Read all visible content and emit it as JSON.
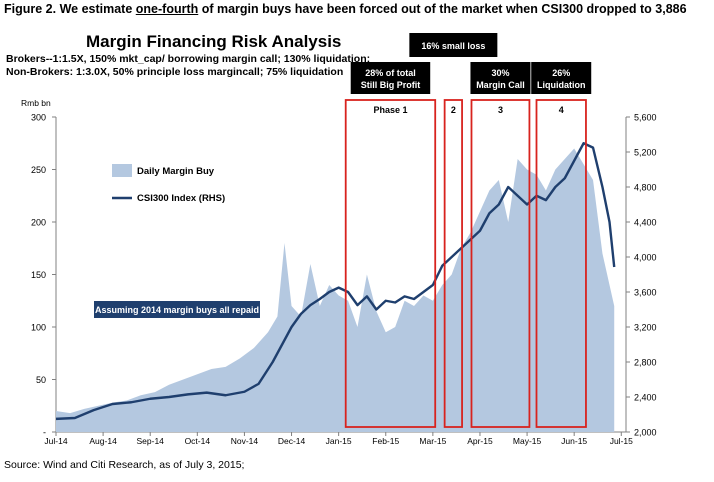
{
  "figure": {
    "prefix": "Figure 2. We estimate ",
    "emphasis": "one-fourth",
    "suffix": " of margin buys have been forced out of the market when CSI300 dropped to 3,886"
  },
  "source": "Source: Wind and Citi Research, as of July 3, 2015;",
  "colors": {
    "area": "#b4c8e0",
    "line": "#1f3f6e",
    "phase_box": "#d8231e",
    "header_fill": "#000000",
    "callout_fill": "#1f3f6e"
  },
  "chart_data": {
    "type": "area+line",
    "title": "Margin Financing Risk Analysis",
    "subtitle_lines": [
      "Brokers--1:1.5X, 150% mkt_cap/ borrowing margin call; 130% liquidation;",
      "Non-Brokers: 1:3.0X, 50% principle loss margincall; 75% liquidation"
    ],
    "ylabel_left": "Rmb bn",
    "ylim_left": [
      0,
      300
    ],
    "yticks_left": [
      "-",
      "50",
      "100",
      "150",
      "200",
      "250",
      "300"
    ],
    "ylim_right": [
      2000,
      5600
    ],
    "yticks_right": [
      "2,000",
      "2,400",
      "2,800",
      "3,200",
      "3,600",
      "4,000",
      "4,400",
      "4,800",
      "5,200",
      "5,600"
    ],
    "xlim": [
      0,
      12.1
    ],
    "xticks": [
      "Jul-14",
      "Aug-14",
      "Sep-14",
      "Oct-14",
      "Nov-14",
      "Dec-14",
      "Jan-15",
      "Feb-15",
      "Mar-15",
      "Apr-15",
      "May-15",
      "Jun-15",
      "Jul-15"
    ],
    "series": [
      {
        "name": "Daily Margin Buy",
        "kind": "area",
        "axis": "left",
        "points": [
          [
            0,
            20
          ],
          [
            0.3,
            18
          ],
          [
            0.6,
            22
          ],
          [
            0.9,
            25
          ],
          [
            1.2,
            28
          ],
          [
            1.5,
            30
          ],
          [
            1.8,
            35
          ],
          [
            2.1,
            38
          ],
          [
            2.4,
            45
          ],
          [
            2.7,
            50
          ],
          [
            3,
            55
          ],
          [
            3.3,
            60
          ],
          [
            3.6,
            62
          ],
          [
            3.9,
            70
          ],
          [
            4.2,
            80
          ],
          [
            4.5,
            95
          ],
          [
            4.7,
            110
          ],
          [
            4.85,
            180
          ],
          [
            5,
            120
          ],
          [
            5.2,
            110
          ],
          [
            5.4,
            160
          ],
          [
            5.6,
            120
          ],
          [
            5.8,
            140
          ],
          [
            6,
            130
          ],
          [
            6.2,
            125
          ],
          [
            6.4,
            100
          ],
          [
            6.6,
            150
          ],
          [
            6.8,
            115
          ],
          [
            7,
            95
          ],
          [
            7.2,
            100
          ],
          [
            7.4,
            125
          ],
          [
            7.6,
            120
          ],
          [
            7.8,
            130
          ],
          [
            8,
            125
          ],
          [
            8.2,
            140
          ],
          [
            8.4,
            150
          ],
          [
            8.6,
            175
          ],
          [
            8.8,
            190
          ],
          [
            9,
            210
          ],
          [
            9.2,
            230
          ],
          [
            9.4,
            240
          ],
          [
            9.6,
            200
          ],
          [
            9.8,
            260
          ],
          [
            10,
            250
          ],
          [
            10.2,
            245
          ],
          [
            10.4,
            230
          ],
          [
            10.6,
            250
          ],
          [
            10.8,
            260
          ],
          [
            11,
            270
          ],
          [
            11.2,
            255
          ],
          [
            11.4,
            240
          ],
          [
            11.6,
            170
          ],
          [
            11.75,
            140
          ],
          [
            11.85,
            120
          ]
        ]
      },
      {
        "name": "CSI300 Index (RHS)",
        "kind": "line",
        "axis": "right",
        "points": [
          [
            0,
            2150
          ],
          [
            0.4,
            2160
          ],
          [
            0.8,
            2250
          ],
          [
            1.2,
            2320
          ],
          [
            1.6,
            2340
          ],
          [
            2,
            2380
          ],
          [
            2.4,
            2400
          ],
          [
            2.8,
            2430
          ],
          [
            3.2,
            2450
          ],
          [
            3.6,
            2420
          ],
          [
            4,
            2460
          ],
          [
            4.3,
            2550
          ],
          [
            4.6,
            2800
          ],
          [
            4.8,
            3000
          ],
          [
            5,
            3200
          ],
          [
            5.2,
            3350
          ],
          [
            5.4,
            3450
          ],
          [
            5.6,
            3520
          ],
          [
            5.8,
            3600
          ],
          [
            6,
            3650
          ],
          [
            6.2,
            3600
          ],
          [
            6.4,
            3450
          ],
          [
            6.6,
            3550
          ],
          [
            6.8,
            3400
          ],
          [
            7,
            3500
          ],
          [
            7.2,
            3480
          ],
          [
            7.4,
            3550
          ],
          [
            7.6,
            3520
          ],
          [
            7.8,
            3600
          ],
          [
            8,
            3680
          ],
          [
            8.2,
            3900
          ],
          [
            8.4,
            4000
          ],
          [
            8.6,
            4100
          ],
          [
            8.8,
            4200
          ],
          [
            9,
            4300
          ],
          [
            9.2,
            4500
          ],
          [
            9.4,
            4600
          ],
          [
            9.6,
            4800
          ],
          [
            9.8,
            4700
          ],
          [
            10,
            4600
          ],
          [
            10.2,
            4700
          ],
          [
            10.4,
            4650
          ],
          [
            10.6,
            4800
          ],
          [
            10.8,
            4900
          ],
          [
            11,
            5100
          ],
          [
            11.2,
            5300
          ],
          [
            11.4,
            5250
          ],
          [
            11.6,
            4800
          ],
          [
            11.75,
            4400
          ],
          [
            11.85,
            3886
          ]
        ]
      }
    ],
    "phases": [
      {
        "label": "Phase 1",
        "x0": 6.15,
        "x1": 8.05,
        "header": [
          "28% of total",
          "Still Big Profit"
        ]
      },
      {
        "label": "2",
        "x0": 8.25,
        "x1": 8.62,
        "header_above": "16% small loss"
      },
      {
        "label": "3",
        "x0": 8.82,
        "x1": 10.05,
        "header": [
          "30%",
          "Margin Call"
        ]
      },
      {
        "label": "4",
        "x0": 10.2,
        "x1": 11.25,
        "header": [
          "26%",
          "Liquidation"
        ]
      }
    ],
    "callout": "Assuming 2014 margin buys all repaid",
    "legend_placement": "left-center"
  }
}
